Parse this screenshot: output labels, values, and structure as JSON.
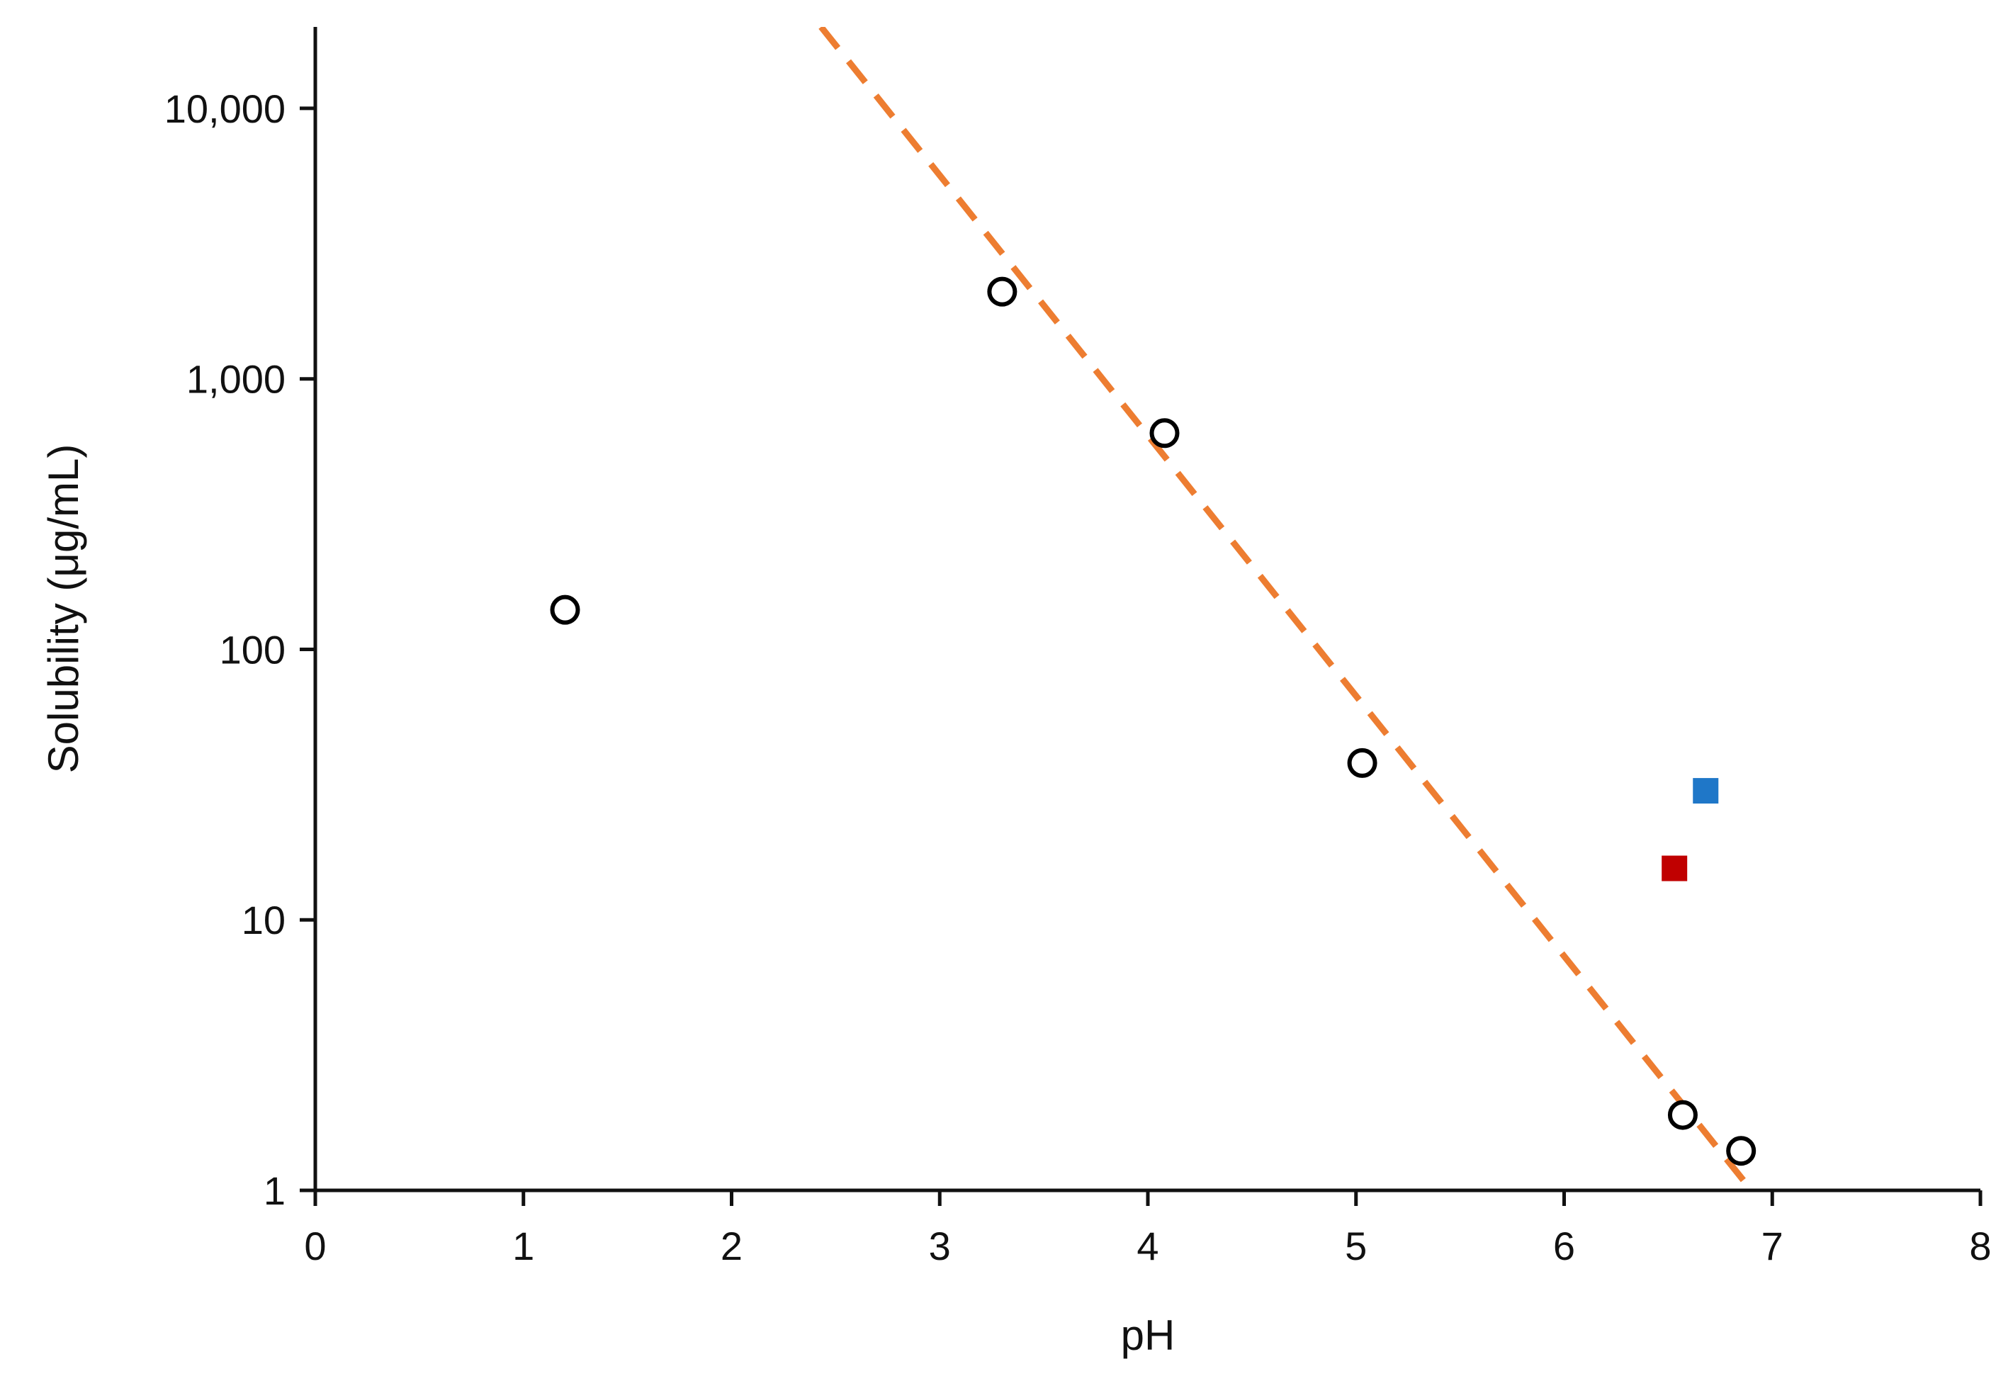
{
  "chart_data": {
    "type": "scatter",
    "xlabel": "pH",
    "ylabel": "Solubility (μg/mL)",
    "xlim": [
      0,
      8
    ],
    "ylim": [
      1,
      20000
    ],
    "yscale": "log",
    "grid": false,
    "x_ticks": [
      0,
      1,
      2,
      3,
      4,
      5,
      6,
      7,
      8
    ],
    "x_tick_labels": [
      "0",
      "1",
      "2",
      "3",
      "4",
      "5",
      "6",
      "7",
      "8"
    ],
    "y_ticks": [
      1,
      10,
      100,
      1000,
      10000
    ],
    "y_tick_labels": [
      "1",
      "10",
      "100",
      "1,000",
      "10,000"
    ],
    "series": [
      {
        "marker": "open-circle",
        "color": "#000000",
        "points": [
          {
            "x": 1.2,
            "y": 140
          },
          {
            "x": 3.3,
            "y": 2100
          },
          {
            "x": 4.08,
            "y": 630
          },
          {
            "x": 5.03,
            "y": 38
          },
          {
            "x": 6.57,
            "y": 1.9
          },
          {
            "x": 6.85,
            "y": 1.4
          }
        ]
      },
      {
        "marker": "filled-square",
        "color": "#c00000",
        "points": [
          {
            "x": 6.53,
            "y": 15.5
          }
        ]
      },
      {
        "marker": "filled-square",
        "color": "#1f77c8",
        "points": [
          {
            "x": 6.68,
            "y": 30
          }
        ]
      },
      {
        "marker": "dashed-line",
        "color": "#ed7d31",
        "points": [
          {
            "x": 2.43,
            "y": 20000
          },
          {
            "x": 6.9,
            "y": 1
          }
        ]
      }
    ]
  }
}
